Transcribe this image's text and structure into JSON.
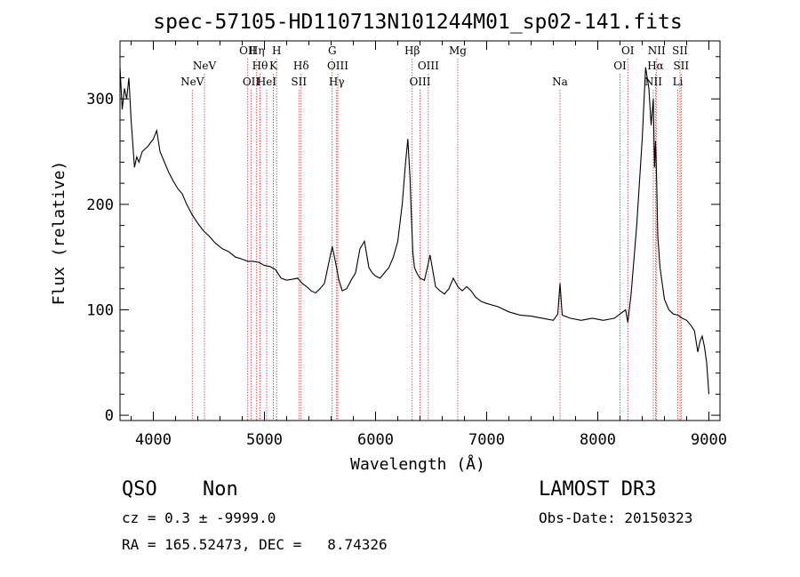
{
  "chart_data": {
    "type": "line",
    "title": "spec-57105-HD110713N101244M01_sp02-141.fits",
    "xlabel": "Wavelength (Å)",
    "ylabel": "Flux (relative)",
    "xlim": [
      3700,
      9100
    ],
    "ylim": [
      -5,
      355
    ],
    "xticks": [
      4000,
      5000,
      6000,
      7000,
      8000,
      9000
    ],
    "yticks": [
      0,
      100,
      200,
      300
    ],
    "grid": false,
    "series": [
      {
        "color": "#000000",
        "x": [
          3700,
          3720,
          3740,
          3760,
          3780,
          3800,
          3830,
          3850,
          3870,
          3900,
          3950,
          4000,
          4030,
          4060,
          4100,
          4140,
          4180,
          4220,
          4260,
          4300,
          4350,
          4400,
          4450,
          4500,
          4560,
          4620,
          4680,
          4740,
          4800,
          4850,
          4900,
          4950,
          5000,
          5050,
          5100,
          5150,
          5200,
          5250,
          5300,
          5340,
          5380,
          5420,
          5460,
          5500,
          5540,
          5580,
          5610,
          5640,
          5670,
          5700,
          5740,
          5780,
          5820,
          5860,
          5900,
          5940,
          5970,
          6000,
          6040,
          6080,
          6120,
          6160,
          6200,
          6240,
          6270,
          6290,
          6310,
          6320,
          6335,
          6350,
          6370,
          6400,
          6440,
          6470,
          6490,
          6510,
          6540,
          6580,
          6620,
          6660,
          6700,
          6740,
          6780,
          6820,
          6860,
          6900,
          6950,
          7000,
          7100,
          7200,
          7300,
          7400,
          7500,
          7600,
          7640,
          7660,
          7680,
          7750,
          7850,
          7950,
          8050,
          8150,
          8200,
          8250,
          8270,
          8300,
          8350,
          8400,
          8430,
          8460,
          8480,
          8500,
          8510,
          8520,
          8530,
          8540,
          8560,
          8580,
          8600,
          8640,
          8680,
          8720,
          8760,
          8800,
          8840,
          8870,
          8900,
          8920,
          8940,
          8960,
          8980,
          9000
        ],
        "y": [
          330,
          290,
          310,
          300,
          320,
          280,
          235,
          245,
          240,
          250,
          255,
          262,
          270,
          250,
          240,
          230,
          222,
          215,
          210,
          200,
          190,
          182,
          175,
          170,
          163,
          158,
          155,
          150,
          148,
          146,
          146,
          145,
          142,
          141,
          138,
          130,
          128,
          129,
          130,
          125,
          122,
          118,
          116,
          120,
          125,
          145,
          160,
          145,
          128,
          118,
          120,
          128,
          135,
          158,
          165,
          140,
          135,
          132,
          130,
          135,
          140,
          150,
          165,
          200,
          240,
          262,
          225,
          195,
          155,
          140,
          135,
          130,
          128,
          142,
          152,
          140,
          122,
          118,
          115,
          120,
          130,
          122,
          118,
          122,
          118,
          112,
          108,
          106,
          103,
          98,
          95,
          94,
          92,
          90,
          96,
          125,
          95,
          92,
          90,
          92,
          90,
          92,
          96,
          100,
          88,
          115,
          180,
          262,
          330,
          310,
          275,
          300,
          235,
          260,
          220,
          170,
          140,
          125,
          110,
          100,
          96,
          95,
          92,
          90,
          85,
          80,
          60,
          70,
          75,
          65,
          50,
          20
        ]
      }
    ],
    "lines": [
      {
        "label": "NeV",
        "x": 4350,
        "row": 3
      },
      {
        "label": "NeV",
        "x": 4460,
        "row": 2
      },
      {
        "label": "OII",
        "x": 4850,
        "row": 1
      },
      {
        "label": "OII",
        "x": 4880,
        "row": 3
      },
      {
        "label": "Hη",
        "x": 4930,
        "row": 1
      },
      {
        "label": "Hθ",
        "x": 4960,
        "row": 2
      },
      {
        "label": "HeI",
        "x": 5020,
        "row": 3
      },
      {
        "label": "H",
        "x": 5110,
        "row": 1
      },
      {
        "label": "K",
        "x": 5080,
        "row": 2
      },
      {
        "label": "Hδ",
        "x": 5330,
        "row": 2
      },
      {
        "label": "SII",
        "x": 5310,
        "row": 3
      },
      {
        "label": "G",
        "x": 5610,
        "row": 1
      },
      {
        "label": "OIII",
        "x": 5660,
        "row": 2
      },
      {
        "label": "Hγ",
        "x": 5650,
        "row": 3
      },
      {
        "label": "Hβ",
        "x": 6330,
        "row": 1
      },
      {
        "label": "OIII",
        "x": 6475,
        "row": 2
      },
      {
        "label": "OIII",
        "x": 6400,
        "row": 3
      },
      {
        "label": "Mg",
        "x": 6740,
        "row": 1
      },
      {
        "label": "Na",
        "x": 7660,
        "row": 3
      },
      {
        "label": "OI",
        "x": 8270,
        "row": 1
      },
      {
        "label": "OI",
        "x": 8200,
        "row": 2
      },
      {
        "label": "NII",
        "x": 8530,
        "row": 1
      },
      {
        "label": "Hα",
        "x": 8520,
        "row": 2
      },
      {
        "label": "NII",
        "x": 8500,
        "row": 3
      },
      {
        "label": "SII",
        "x": 8740,
        "row": 1
      },
      {
        "label": "SII",
        "x": 8750,
        "row": 2
      },
      {
        "label": "Li",
        "x": 8720,
        "row": 3
      }
    ],
    "line_color": "#c83232"
  },
  "info": {
    "class_label": "QSO",
    "subclass_label": "Non",
    "survey_label": "LAMOST DR3",
    "cz_text": "cz = 0.3 ± -9999.0",
    "obs_date_text": "Obs-Date: 20150323",
    "radec_text": "RA = 165.52473, DEC =   8.74326"
  }
}
